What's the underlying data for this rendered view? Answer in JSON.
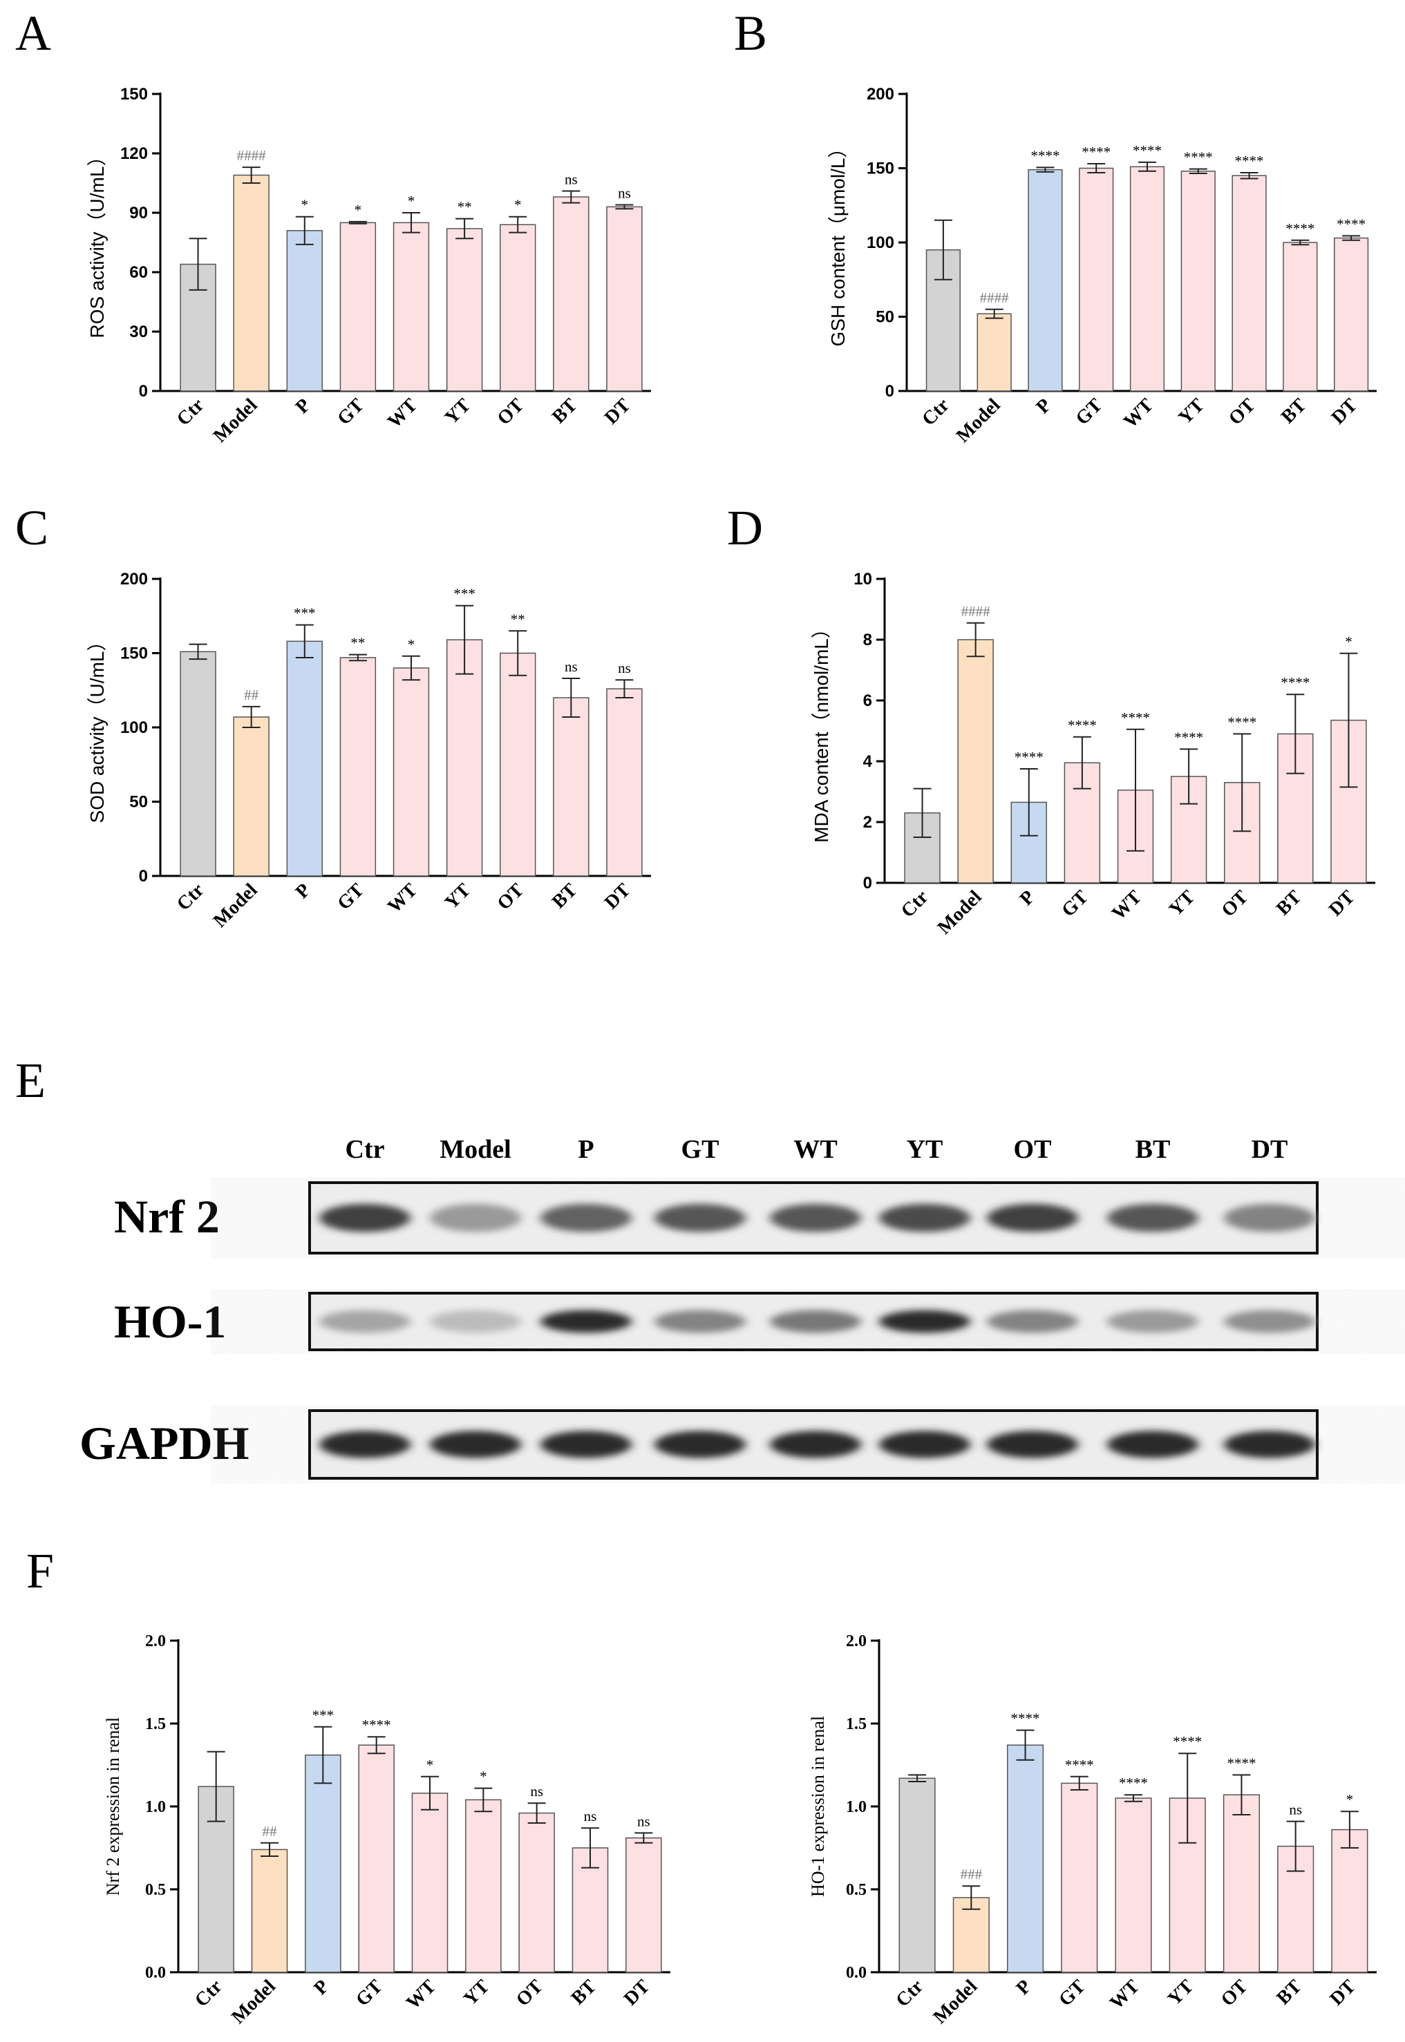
{
  "categories": [
    "Ctr",
    "Model",
    "P",
    "GT",
    "WT",
    "YT",
    "OT",
    "BT",
    "DT"
  ],
  "colors": {
    "ctr": "#d3d3d3",
    "model": "#fde0c2",
    "p": "#c6d9f1",
    "tea": "#fde0e2",
    "axis": "#000000",
    "hash_text": "#777777"
  },
  "panels": {
    "A": "A",
    "B": "B",
    "C": "C",
    "D": "D",
    "E": "E",
    "F": "F"
  },
  "western_blot": {
    "lanes": [
      "Ctr",
      "Model",
      "P",
      "GT",
      "WT",
      "YT",
      "OT",
      "BT",
      "DT"
    ],
    "proteins": [
      "Nrf 2",
      "HO-1",
      "GAPDH"
    ],
    "band_intensity": {
      "Nrf 2": [
        0.85,
        0.45,
        0.7,
        0.75,
        0.75,
        0.8,
        0.85,
        0.75,
        0.55
      ],
      "HO-1": [
        0.4,
        0.3,
        0.95,
        0.55,
        0.6,
        0.95,
        0.55,
        0.45,
        0.5
      ],
      "GAPDH": [
        0.95,
        0.95,
        0.95,
        0.95,
        0.95,
        0.95,
        0.95,
        0.95,
        0.95
      ]
    }
  },
  "chart_data": [
    {
      "panel": "A",
      "type": "bar",
      "ylabel": "ROS activity（U/mL）",
      "ylim": [
        0,
        150
      ],
      "yticks": [
        0,
        30,
        60,
        90,
        120,
        150
      ],
      "categories": [
        "Ctr",
        "Model",
        "P",
        "GT",
        "WT",
        "YT",
        "OT",
        "BT",
        "DT"
      ],
      "values": [
        64,
        109,
        81,
        85,
        85,
        82,
        84,
        98,
        93
      ],
      "errors": [
        13,
        4,
        7,
        0.5,
        5,
        5,
        4,
        3,
        1
      ],
      "annotations": [
        "",
        "####",
        "*",
        "*",
        "*",
        "**",
        "*",
        "ns",
        "ns"
      ]
    },
    {
      "panel": "B",
      "type": "bar",
      "ylabel": "GSH content（μmol/L）",
      "ylim": [
        0,
        200
      ],
      "yticks": [
        0,
        50,
        100,
        150,
        200
      ],
      "categories": [
        "Ctr",
        "Model",
        "P",
        "GT",
        "WT",
        "YT",
        "OT",
        "BT",
        "DT"
      ],
      "values": [
        95,
        52,
        149,
        150,
        151,
        148,
        145,
        100,
        103
      ],
      "errors": [
        20,
        3,
        1.5,
        3,
        3,
        1.5,
        2,
        1.5,
        1.5
      ],
      "annotations": [
        "",
        "####",
        "****",
        "****",
        "****",
        "****",
        "****",
        "****",
        "****"
      ]
    },
    {
      "panel": "C",
      "type": "bar",
      "ylabel": "SOD activity（U/mL）",
      "ylim": [
        0,
        200
      ],
      "yticks": [
        0,
        50,
        100,
        150,
        200
      ],
      "categories": [
        "Ctr",
        "Model",
        "P",
        "GT",
        "WT",
        "YT",
        "OT",
        "BT",
        "DT"
      ],
      "values": [
        151,
        107,
        158,
        147,
        140,
        159,
        150,
        120,
        126
      ],
      "errors": [
        5,
        7,
        11,
        2,
        8,
        23,
        15,
        13,
        6
      ],
      "annotations": [
        "",
        "##",
        "***",
        "**",
        "*",
        "***",
        "**",
        "ns",
        "ns"
      ]
    },
    {
      "panel": "D",
      "type": "bar",
      "ylabel": "MDA content（nmol/mL）",
      "ylim": [
        0,
        10
      ],
      "yticks": [
        0,
        2,
        4,
        6,
        8,
        10
      ],
      "categories": [
        "Ctr",
        "Model",
        "P",
        "GT",
        "WT",
        "YT",
        "OT",
        "BT",
        "DT"
      ],
      "values": [
        2.3,
        8.0,
        2.65,
        3.95,
        3.05,
        3.5,
        3.3,
        4.9,
        5.35
      ],
      "errors": [
        0.8,
        0.55,
        1.1,
        0.85,
        2.0,
        0.9,
        1.6,
        1.3,
        2.2
      ],
      "annotations": [
        "",
        "####",
        "****",
        "****",
        "****",
        "****",
        "****",
        "****",
        "*"
      ]
    },
    {
      "panel": "F-left",
      "type": "bar",
      "ylabel": "Nrf 2  expression in renal",
      "ylim": [
        0,
        2.0
      ],
      "yticks": [
        0.0,
        0.5,
        1.0,
        1.5,
        2.0
      ],
      "categories": [
        "Ctr",
        "Model",
        "P",
        "GT",
        "WT",
        "YT",
        "OT",
        "BT",
        "DT"
      ],
      "values": [
        1.12,
        0.74,
        1.31,
        1.37,
        1.08,
        1.04,
        0.96,
        0.75,
        0.81
      ],
      "errors": [
        0.21,
        0.04,
        0.17,
        0.05,
        0.1,
        0.07,
        0.06,
        0.12,
        0.03
      ],
      "annotations": [
        "",
        "##",
        "***",
        "****",
        "*",
        "*",
        "ns",
        "ns",
        "ns"
      ]
    },
    {
      "panel": "F-right",
      "type": "bar",
      "ylabel": "HO-1  expression in renal",
      "ylim": [
        0,
        2.0
      ],
      "yticks": [
        0.0,
        0.5,
        1.0,
        1.5,
        2.0
      ],
      "categories": [
        "Ctr",
        "Model",
        "P",
        "GT",
        "WT",
        "YT",
        "OT",
        "BT",
        "DT"
      ],
      "values": [
        1.17,
        0.45,
        1.37,
        1.14,
        1.05,
        1.05,
        1.07,
        0.76,
        0.86
      ],
      "errors": [
        0.02,
        0.07,
        0.09,
        0.04,
        0.02,
        0.27,
        0.12,
        0.15,
        0.11
      ],
      "annotations": [
        "",
        "###",
        "****",
        "****",
        "****",
        "****",
        "****",
        "ns",
        "*"
      ]
    }
  ]
}
